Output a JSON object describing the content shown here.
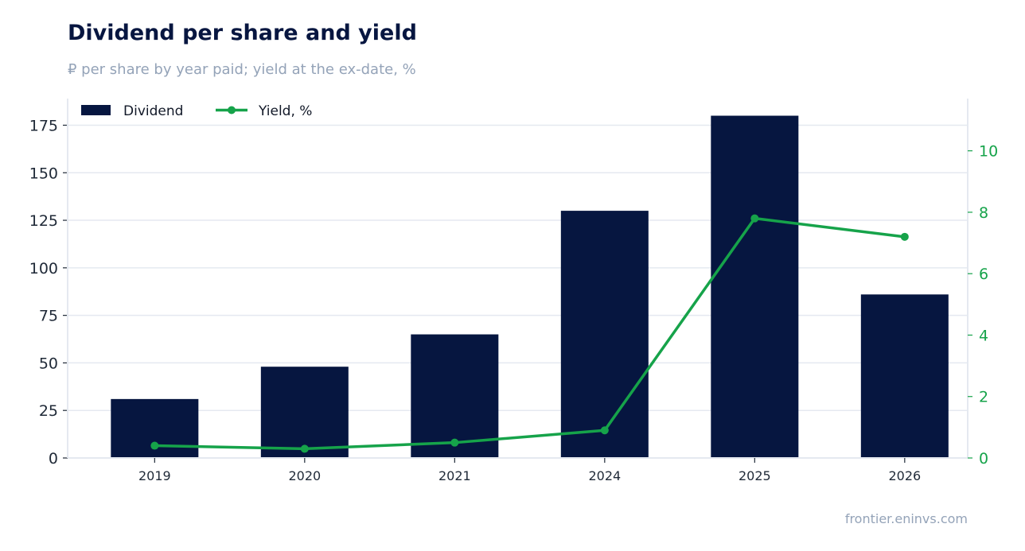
{
  "header": {
    "title": "Dividend per share and yield",
    "subtitle": "₽ per share by year paid; yield at the ex-date, %"
  },
  "footer": {
    "source": "frontier.eninvs.com"
  },
  "colors": {
    "bar": "#061640",
    "line": "#16a34a",
    "grid": "#e5e9f0",
    "axis_text": "#1f2937",
    "right_axis_text": "#16a34a"
  },
  "chart_data": {
    "type": "bar",
    "categories": [
      "2019",
      "2020",
      "2021",
      "2024",
      "2025",
      "2026"
    ],
    "series": [
      {
        "name": "Dividend",
        "type": "bar",
        "axis": "left",
        "values": [
          31,
          48,
          65,
          130,
          180,
          86
        ]
      },
      {
        "name": "Yield, %",
        "type": "line",
        "axis": "right",
        "values": [
          0.4,
          0.3,
          0.5,
          0.9,
          7.8,
          7.2
        ]
      }
    ],
    "y_left": {
      "ylim": [
        0,
        189
      ],
      "ticks": [
        0,
        25,
        50,
        75,
        100,
        125,
        150,
        175
      ]
    },
    "y_right": {
      "ylim": [
        0,
        11.7
      ],
      "ticks": [
        0,
        2,
        4,
        6,
        8,
        10
      ]
    },
    "legend": "top-left",
    "grid": true
  }
}
